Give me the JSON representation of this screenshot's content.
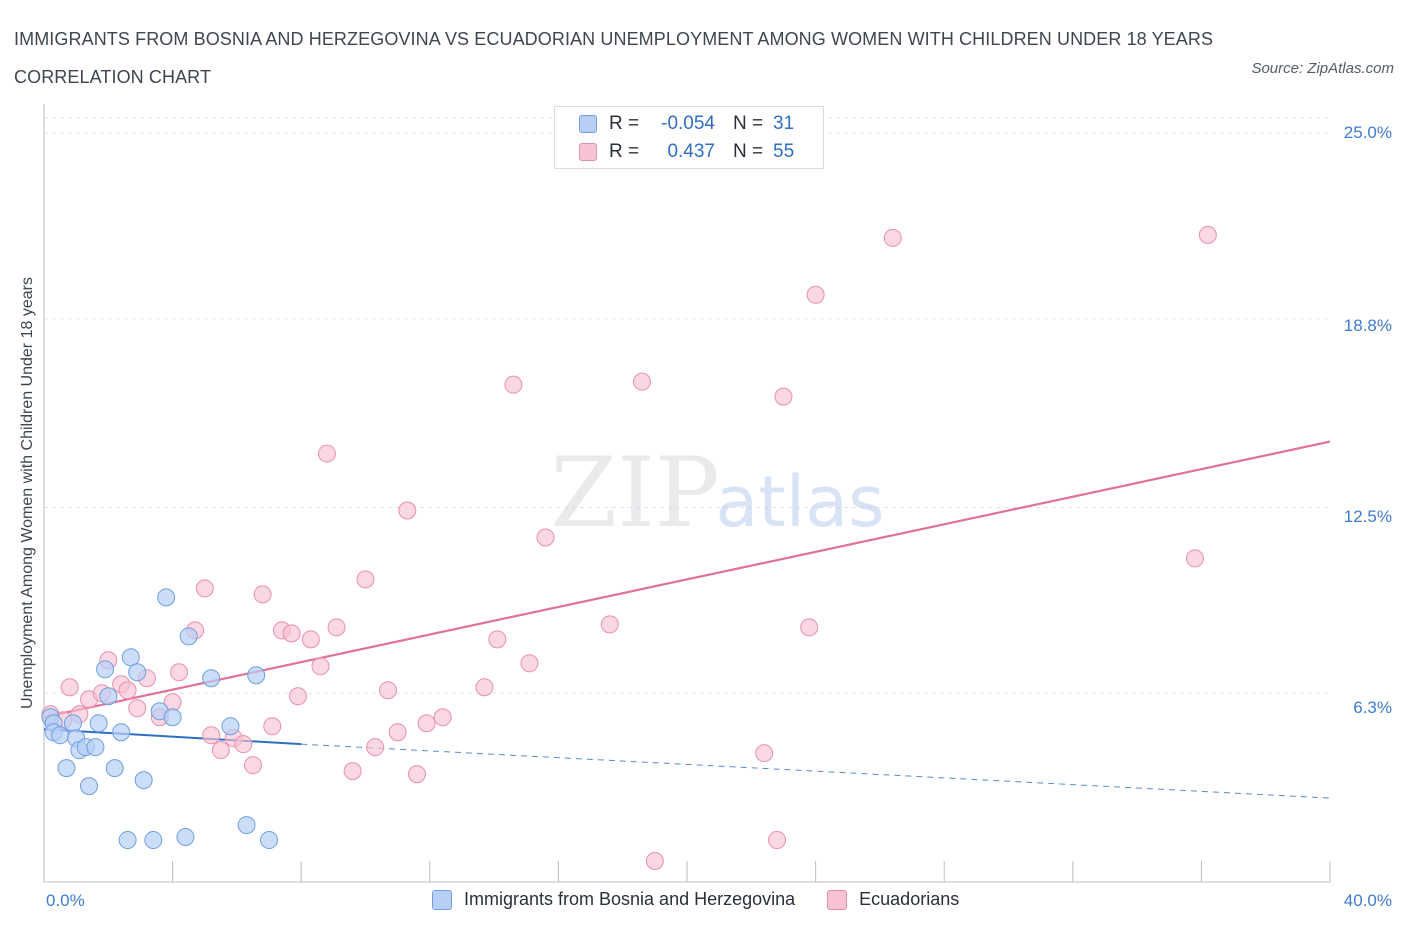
{
  "header": {
    "title": "IMMIGRANTS FROM BOSNIA AND HERZEGOVINA VS ECUADORIAN UNEMPLOYMENT AMONG WOMEN WITH CHILDREN UNDER 18 YEARS CORRELATION CHART",
    "source": "Source: ZipAtlas.com"
  },
  "watermark": {
    "zip": "ZIP",
    "atlas": "atlas"
  },
  "legend": {
    "rows": [
      {
        "r_label": "R =",
        "r_value": "-0.054",
        "n_label": "N =",
        "n_value": "31"
      },
      {
        "r_label": "R =",
        "r_value": "0.437",
        "n_label": "N =",
        "n_value": "55"
      }
    ]
  },
  "colors": {
    "bosnia_fill": "#b7cff5",
    "bosnia_stroke": "#6f9fe0",
    "bosnia_line": "#2f6ec5",
    "ecuador_fill": "#f7c3d3",
    "ecuador_stroke": "#e88fae",
    "ecuador_line": "#e07199",
    "tick_text": "#3d7cd0",
    "grid": "#e1e4e8"
  },
  "chart_data": {
    "type": "scatter",
    "title": "IMMIGRANTS FROM BOSNIA AND HERZEGOVINA VS ECUADORIAN UNEMPLOYMENT AMONG WOMEN WITH CHILDREN UNDER 18 YEARS CORRELATION CHART",
    "xlabel": "",
    "ylabel": "Unemployment Among Women with Children Under 18 years",
    "xlim": [
      0,
      40
    ],
    "ylim": [
      0,
      25
    ],
    "x_tick_labels": [
      "0.0%",
      "40.0%"
    ],
    "y_tick_labels": [
      "25.0%",
      "18.8%",
      "12.5%",
      "6.3%"
    ],
    "y_ticks": [
      25.0,
      18.8,
      12.5,
      6.3
    ],
    "grid": "horizontal dashed",
    "legend_position": "top-center",
    "series": [
      {
        "name": "Immigrants from Bosnia and Herzegovina",
        "r": -0.054,
        "n": 31,
        "trend": {
          "x0": 0.0,
          "y0": 5.1,
          "x1": 8.0,
          "y1": 4.6,
          "dashed_to_x": 40.0,
          "dashed_to_y": 2.8
        },
        "points": [
          [
            0.2,
            5.5
          ],
          [
            0.3,
            5.3
          ],
          [
            0.3,
            5.0
          ],
          [
            0.5,
            4.9
          ],
          [
            0.7,
            3.8
          ],
          [
            0.9,
            5.3
          ],
          [
            1.0,
            4.8
          ],
          [
            1.1,
            4.4
          ],
          [
            1.3,
            4.5
          ],
          [
            1.4,
            3.2
          ],
          [
            1.6,
            4.5
          ],
          [
            1.7,
            5.3
          ],
          [
            1.9,
            7.1
          ],
          [
            2.0,
            6.2
          ],
          [
            2.2,
            3.8
          ],
          [
            2.4,
            5.0
          ],
          [
            2.6,
            1.4
          ],
          [
            2.7,
            7.5
          ],
          [
            2.9,
            7.0
          ],
          [
            3.1,
            3.4
          ],
          [
            3.4,
            1.4
          ],
          [
            3.6,
            5.7
          ],
          [
            3.8,
            9.5
          ],
          [
            4.0,
            5.5
          ],
          [
            4.4,
            1.5
          ],
          [
            4.5,
            8.2
          ],
          [
            5.2,
            6.8
          ],
          [
            5.8,
            5.2
          ],
          [
            6.3,
            1.9
          ],
          [
            6.6,
            6.9
          ],
          [
            7.0,
            1.4
          ]
        ]
      },
      {
        "name": "Ecuadorians",
        "r": 0.437,
        "n": 55,
        "trend": {
          "x0": 0.0,
          "y0": 5.5,
          "x1": 40.0,
          "y1": 14.7
        },
        "points": [
          [
            0.2,
            5.6
          ],
          [
            0.6,
            5.4
          ],
          [
            0.8,
            6.5
          ],
          [
            1.1,
            5.6
          ],
          [
            1.4,
            6.1
          ],
          [
            1.8,
            6.3
          ],
          [
            2.0,
            7.4
          ],
          [
            2.4,
            6.6
          ],
          [
            2.6,
            6.4
          ],
          [
            2.9,
            5.8
          ],
          [
            3.2,
            6.8
          ],
          [
            3.6,
            5.5
          ],
          [
            4.0,
            6.0
          ],
          [
            4.2,
            7.0
          ],
          [
            4.7,
            8.4
          ],
          [
            5.0,
            9.8
          ],
          [
            5.2,
            4.9
          ],
          [
            5.5,
            4.4
          ],
          [
            5.9,
            4.8
          ],
          [
            6.2,
            4.6
          ],
          [
            6.5,
            3.9
          ],
          [
            6.8,
            9.6
          ],
          [
            7.1,
            5.2
          ],
          [
            7.4,
            8.4
          ],
          [
            7.7,
            8.3
          ],
          [
            7.9,
            6.2
          ],
          [
            8.3,
            8.1
          ],
          [
            8.6,
            7.2
          ],
          [
            8.8,
            14.3
          ],
          [
            9.1,
            8.5
          ],
          [
            9.6,
            3.7
          ],
          [
            10.0,
            10.1
          ],
          [
            10.3,
            4.5
          ],
          [
            10.7,
            6.4
          ],
          [
            11.0,
            5.0
          ],
          [
            11.3,
            12.4
          ],
          [
            11.6,
            3.6
          ],
          [
            11.9,
            5.3
          ],
          [
            12.4,
            5.5
          ],
          [
            13.7,
            6.5
          ],
          [
            14.1,
            8.1
          ],
          [
            14.6,
            16.6
          ],
          [
            15.1,
            7.3
          ],
          [
            15.6,
            11.5
          ],
          [
            17.6,
            8.6
          ],
          [
            18.6,
            16.7
          ],
          [
            19.0,
            0.7
          ],
          [
            22.4,
            4.3
          ],
          [
            22.8,
            1.4
          ],
          [
            23.0,
            16.2
          ],
          [
            23.8,
            8.5
          ],
          [
            24.0,
            19.6
          ],
          [
            26.4,
            21.5
          ],
          [
            35.8,
            10.8
          ],
          [
            36.2,
            21.6
          ]
        ]
      }
    ]
  },
  "bottom_legend": {
    "items": [
      {
        "label": "Immigrants from Bosnia and Herzegovina"
      },
      {
        "label": "Ecuadorians"
      }
    ]
  }
}
